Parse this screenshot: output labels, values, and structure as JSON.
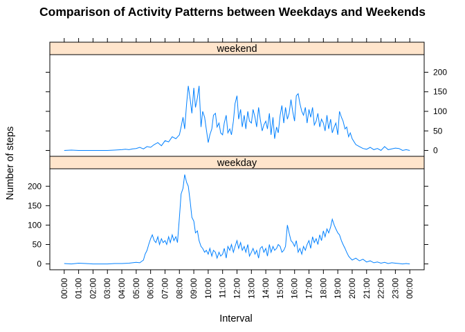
{
  "chart_data": {
    "type": "line",
    "layout": "lattice",
    "title": "Comparison of Activity Patterns between Weekdays and Weekends",
    "xlabel": "Interval",
    "ylabel": "Number of steps",
    "xlim": [
      -60,
      1500
    ],
    "ylim": [
      -15,
      245
    ],
    "x_tick_labels": [
      "00:00",
      "01:00",
      "02:00",
      "03:00",
      "04:00",
      "05:00",
      "06:00",
      "07:00",
      "08:00",
      "09:00",
      "10:00",
      "11:00",
      "12:00",
      "13:00",
      "14:00",
      "15:00",
      "16:00",
      "17:00",
      "18:00",
      "19:00",
      "20:00",
      "21:00",
      "22:00",
      "23:00",
      "00:00"
    ],
    "x_tick_values": [
      0,
      60,
      120,
      180,
      240,
      300,
      360,
      420,
      480,
      540,
      600,
      660,
      720,
      780,
      840,
      900,
      960,
      1020,
      1080,
      1140,
      1200,
      1260,
      1320,
      1380,
      1440
    ],
    "y_tick_values": [
      0,
      50,
      100,
      150,
      200
    ],
    "y_tick_labels": [
      "0",
      "50",
      "100",
      "150",
      "200"
    ],
    "line_color": "#0080ff",
    "strip_color": "#ffe5cc",
    "panels": [
      {
        "label": "weekend",
        "x": [
          0,
          30,
          60,
          90,
          120,
          150,
          180,
          210,
          240,
          255,
          270,
          285,
          300,
          315,
          330,
          345,
          360,
          375,
          390,
          405,
          420,
          435,
          450,
          465,
          480,
          487,
          495,
          502,
          510,
          517,
          525,
          532,
          540,
          547,
          555,
          562,
          570,
          577,
          585,
          592,
          600,
          607,
          615,
          622,
          630,
          637,
          645,
          652,
          660,
          667,
          675,
          682,
          690,
          697,
          705,
          712,
          720,
          727,
          735,
          742,
          750,
          757,
          765,
          772,
          780,
          787,
          795,
          802,
          810,
          817,
          825,
          832,
          840,
          847,
          855,
          862,
          870,
          877,
          885,
          892,
          900,
          907,
          915,
          922,
          930,
          937,
          945,
          952,
          960,
          967,
          975,
          982,
          990,
          997,
          1005,
          1012,
          1020,
          1027,
          1035,
          1042,
          1050,
          1057,
          1065,
          1072,
          1080,
          1087,
          1095,
          1102,
          1110,
          1117,
          1125,
          1132,
          1140,
          1147,
          1155,
          1162,
          1170,
          1177,
          1185,
          1192,
          1200,
          1215,
          1230,
          1245,
          1260,
          1275,
          1290,
          1305,
          1320,
          1335,
          1350,
          1365,
          1380,
          1395,
          1410,
          1425,
          1440
        ],
        "y": [
          0,
          1,
          0,
          0,
          0,
          0,
          0,
          1,
          2,
          3,
          2,
          4,
          5,
          8,
          4,
          10,
          8,
          15,
          20,
          12,
          25,
          22,
          35,
          30,
          40,
          60,
          85,
          55,
          120,
          165,
          130,
          95,
          160,
          110,
          135,
          165,
          60,
          100,
          85,
          55,
          20,
          40,
          55,
          90,
          95,
          60,
          70,
          45,
          40,
          70,
          90,
          45,
          55,
          40,
          75,
          120,
          140,
          80,
          105,
          60,
          90,
          55,
          100,
          75,
          70,
          105,
          85,
          60,
          110,
          80,
          50,
          65,
          75,
          55,
          95,
          40,
          85,
          30,
          60,
          45,
          90,
          115,
          70,
          110,
          80,
          95,
          130,
          100,
          75,
          140,
          145,
          120,
          100,
          90,
          110,
          70,
          105,
          85,
          110,
          65,
          75,
          95,
          60,
          80,
          70,
          50,
          90,
          55,
          80,
          45,
          60,
          70,
          40,
          100,
          85,
          75,
          55,
          60,
          35,
          45,
          30,
          15,
          10,
          5,
          3,
          8,
          2,
          5,
          0,
          10,
          2,
          4,
          6,
          5,
          0,
          2,
          0
        ]
      },
      {
        "label": "weekday",
        "x": [
          0,
          30,
          60,
          90,
          120,
          150,
          180,
          210,
          240,
          270,
          300,
          315,
          330,
          337,
          345,
          352,
          360,
          367,
          375,
          382,
          390,
          397,
          405,
          412,
          420,
          427,
          435,
          442,
          450,
          457,
          465,
          472,
          480,
          487,
          495,
          502,
          510,
          517,
          525,
          532,
          540,
          547,
          555,
          562,
          570,
          577,
          585,
          592,
          600,
          607,
          615,
          622,
          630,
          637,
          645,
          652,
          660,
          667,
          675,
          682,
          690,
          697,
          705,
          712,
          720,
          727,
          735,
          742,
          750,
          757,
          765,
          772,
          780,
          787,
          795,
          802,
          810,
          817,
          825,
          832,
          840,
          847,
          855,
          862,
          870,
          877,
          885,
          892,
          900,
          907,
          915,
          922,
          930,
          937,
          945,
          952,
          960,
          967,
          975,
          982,
          990,
          997,
          1005,
          1012,
          1020,
          1027,
          1035,
          1042,
          1050,
          1057,
          1065,
          1072,
          1080,
          1087,
          1095,
          1102,
          1110,
          1117,
          1125,
          1132,
          1140,
          1147,
          1155,
          1162,
          1170,
          1177,
          1185,
          1192,
          1200,
          1215,
          1230,
          1245,
          1260,
          1275,
          1290,
          1305,
          1320,
          1335,
          1350,
          1365,
          1380,
          1395,
          1410,
          1425,
          1440
        ],
        "y": [
          1,
          0,
          2,
          1,
          0,
          0,
          0,
          1,
          1,
          2,
          4,
          3,
          10,
          25,
          35,
          50,
          65,
          75,
          60,
          55,
          70,
          50,
          65,
          55,
          60,
          50,
          70,
          55,
          75,
          60,
          70,
          55,
          120,
          180,
          195,
          230,
          210,
          200,
          160,
          120,
          110,
          80,
          85,
          60,
          45,
          40,
          30,
          35,
          25,
          40,
          20,
          35,
          30,
          15,
          30,
          20,
          25,
          40,
          15,
          45,
          35,
          50,
          30,
          45,
          60,
          40,
          55,
          35,
          45,
          30,
          50,
          20,
          30,
          40,
          25,
          35,
          15,
          40,
          45,
          30,
          40,
          20,
          50,
          30,
          45,
          35,
          40,
          50,
          45,
          30,
          35,
          45,
          100,
          80,
          60,
          55,
          45,
          60,
          30,
          40,
          25,
          45,
          35,
          50,
          60,
          40,
          70,
          55,
          65,
          50,
          75,
          60,
          85,
          70,
          90,
          80,
          95,
          115,
          100,
          90,
          80,
          75,
          60,
          50,
          40,
          30,
          20,
          15,
          10,
          15,
          8,
          12,
          5,
          8,
          3,
          5,
          2,
          4,
          1,
          3,
          2,
          1,
          0,
          1,
          0
        ]
      }
    ]
  }
}
